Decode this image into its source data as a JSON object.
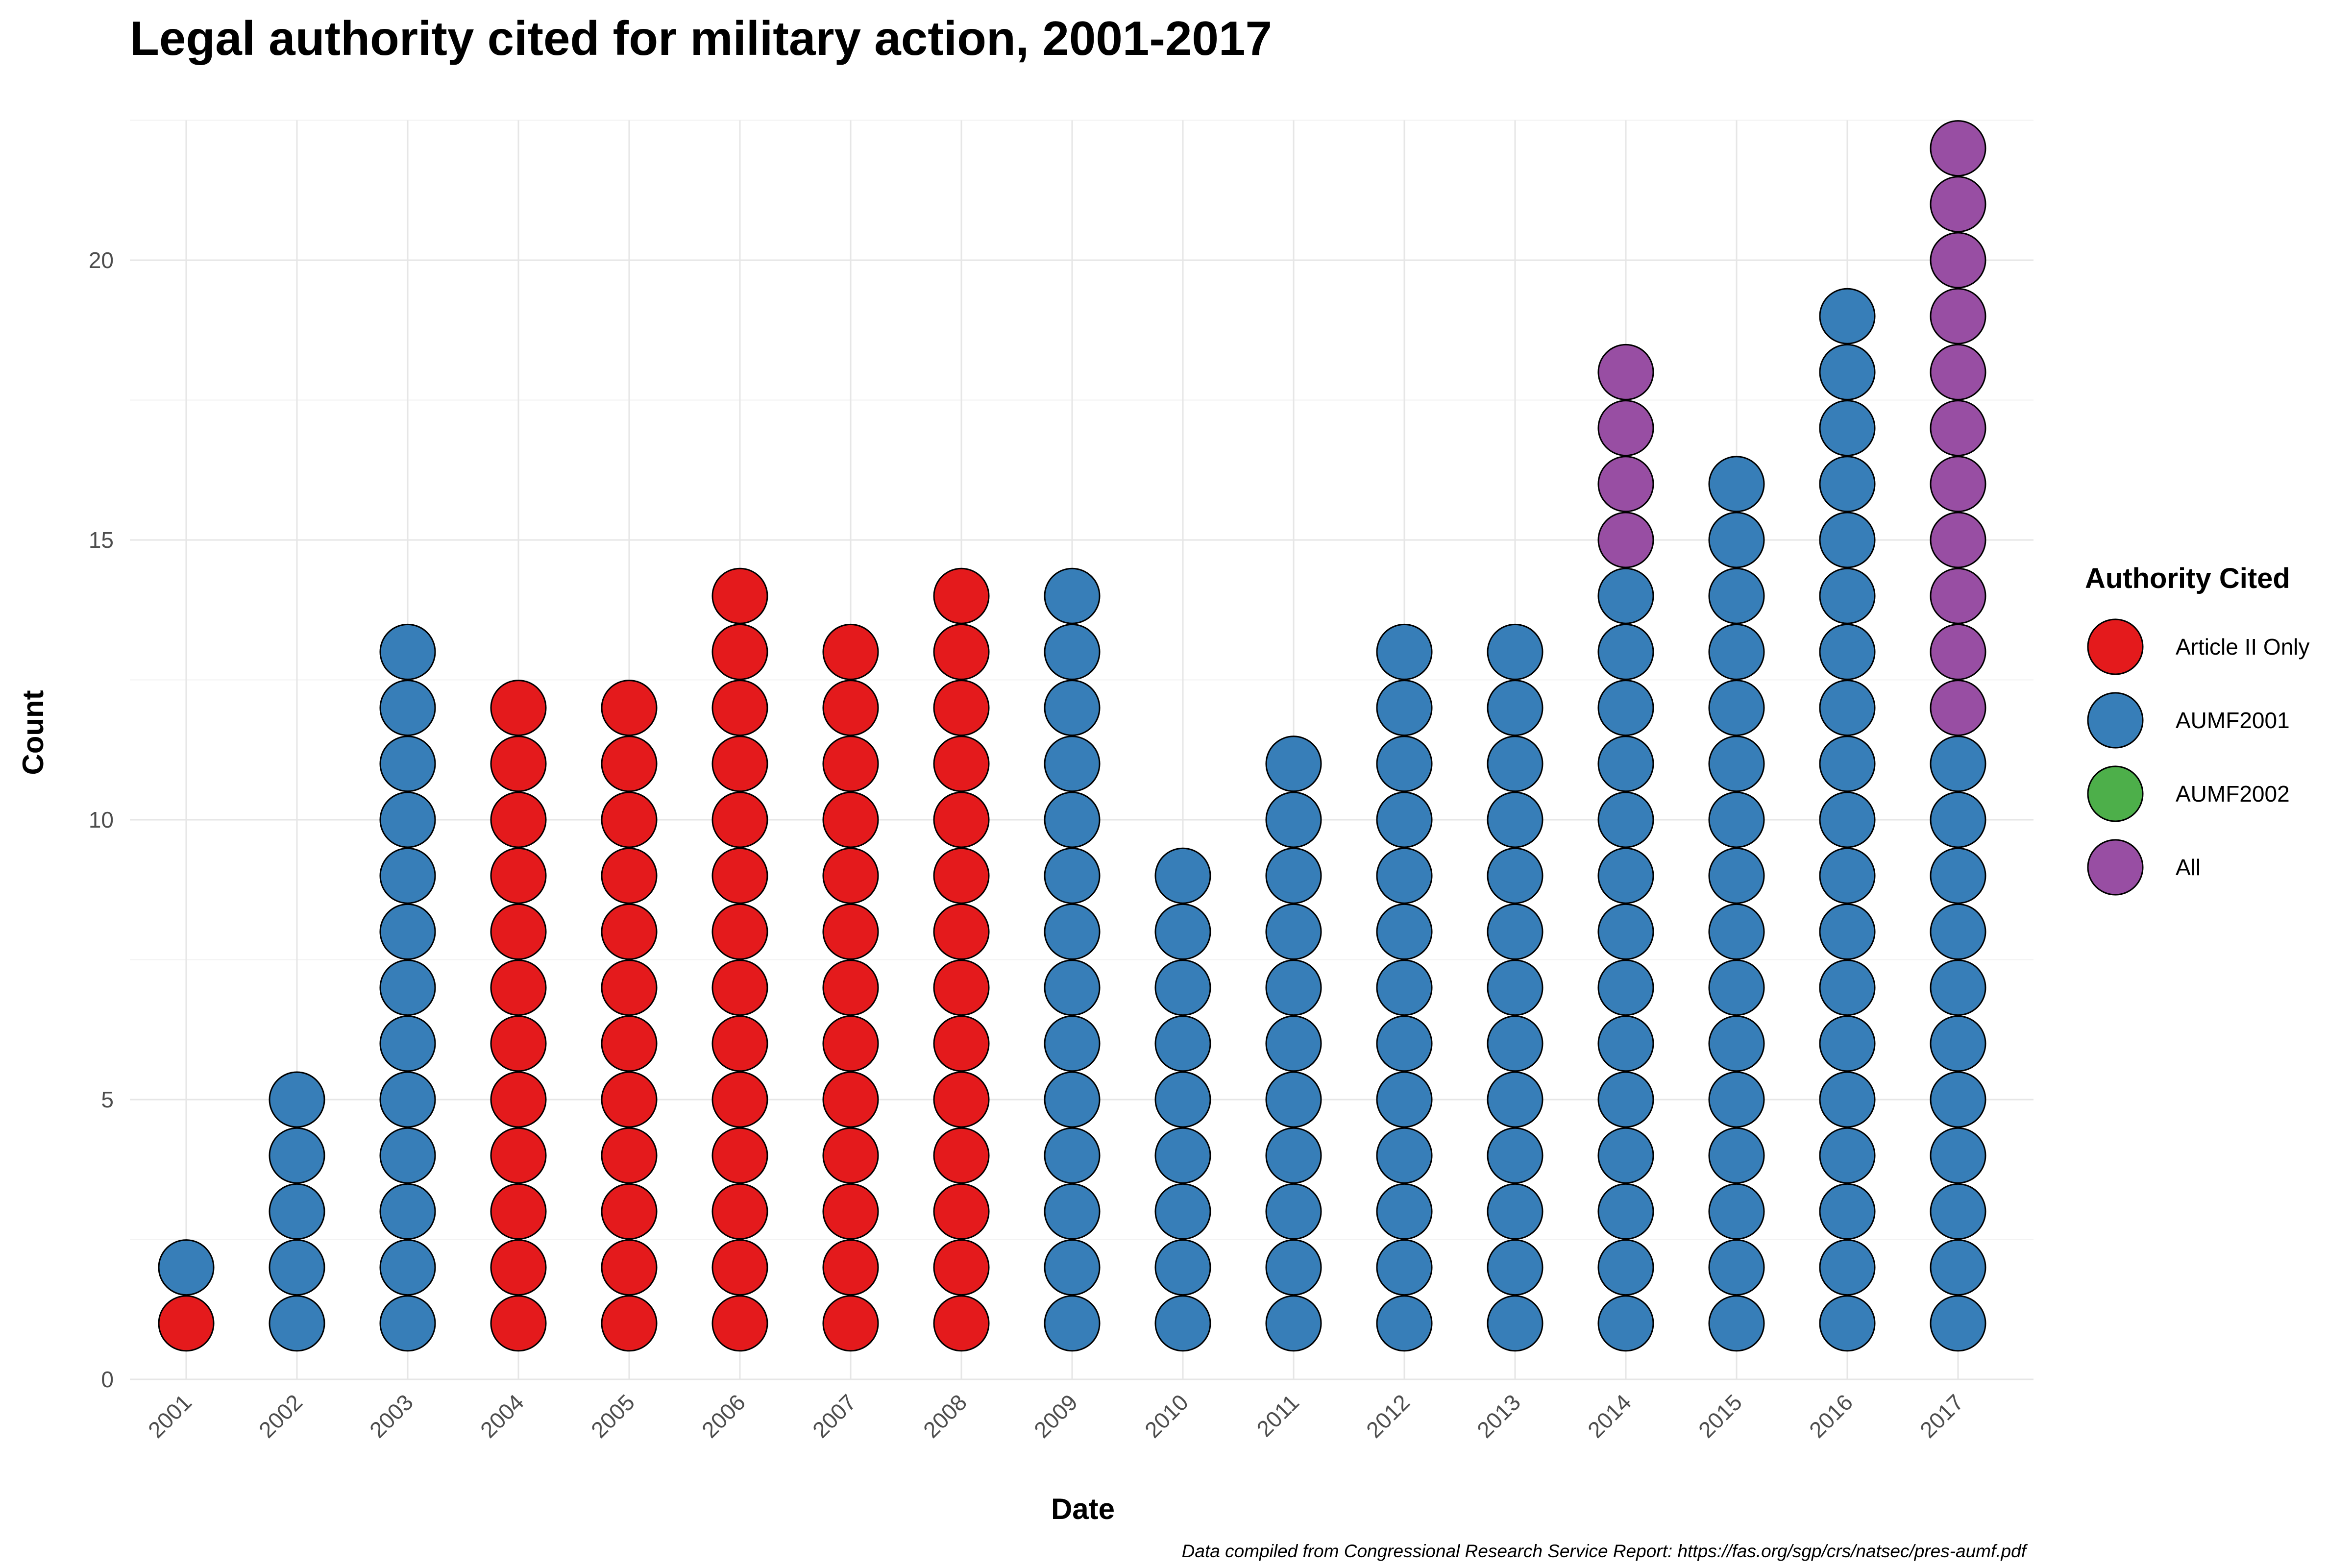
{
  "chart_data": {
    "type": "dotplot",
    "title": "Legal authority cited for military action, 2001-2017",
    "xlabel": "Date",
    "ylabel": "Count",
    "caption": "Data compiled from Congressional Research Service Report: https://fas.org/sgp/crs/natsec/pres-aumf.pdf",
    "ylim": [
      0,
      22.5
    ],
    "yticks": [
      0,
      5,
      10,
      15,
      20
    ],
    "grid": true,
    "legend": {
      "title": "Authority Cited",
      "placement": "right",
      "entries": [
        {
          "name": "Article II Only",
          "color": "#e41a1c"
        },
        {
          "name": "AUMF2001",
          "color": "#377eb8"
        },
        {
          "name": "AUMF2002",
          "color": "#4daf4a"
        },
        {
          "name": "All",
          "color": "#984ea3"
        }
      ]
    },
    "categories": [
      "2001",
      "2002",
      "2003",
      "2004",
      "2005",
      "2006",
      "2007",
      "2008",
      "2009",
      "2010",
      "2011",
      "2012",
      "2013",
      "2014",
      "2015",
      "2016",
      "2017"
    ],
    "series": [
      {
        "name": "Article II Only",
        "values": [
          1,
          0,
          0,
          12,
          12,
          14,
          13,
          14,
          0,
          0,
          0,
          0,
          0,
          0,
          0,
          0,
          0
        ]
      },
      {
        "name": "AUMF2001",
        "values": [
          1,
          5,
          13,
          0,
          0,
          0,
          0,
          0,
          14,
          9,
          11,
          13,
          13,
          14,
          16,
          19,
          11
        ]
      },
      {
        "name": "AUMF2002",
        "values": [
          0,
          0,
          0,
          0,
          0,
          0,
          0,
          0,
          0,
          0,
          0,
          0,
          0,
          0,
          0,
          0,
          0
        ]
      },
      {
        "name": "All",
        "values": [
          0,
          0,
          0,
          0,
          0,
          0,
          0,
          0,
          0,
          0,
          0,
          0,
          0,
          4,
          0,
          0,
          11
        ]
      }
    ]
  }
}
